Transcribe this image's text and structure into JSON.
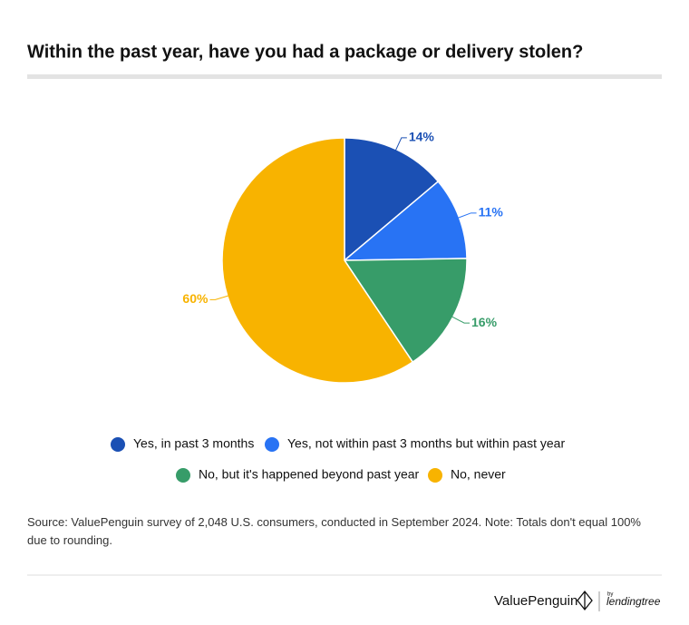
{
  "chart_data": {
    "type": "pie",
    "title": "Within the past year, have you had a package or delivery stolen?",
    "categories": [
      "Yes, in past 3 months",
      "Yes, not within past 3 months but within past year",
      "No, but it's happened beyond past year",
      "No, never"
    ],
    "values": [
      14,
      11,
      16,
      60
    ],
    "value_labels": [
      "14%",
      "11%",
      "16%",
      "60%"
    ],
    "colors": [
      "#1b50b4",
      "#2873f4",
      "#379c69",
      "#f8b300"
    ],
    "legend": "bottom"
  },
  "source": "Source: ValuePenguin survey of 2,048 U.S. consumers, conducted in September 2024. Note: Totals don't equal 100% due to rounding.",
  "footer": {
    "brand": "ValuePenguin",
    "by": "by",
    "partner": "lendingtree"
  }
}
